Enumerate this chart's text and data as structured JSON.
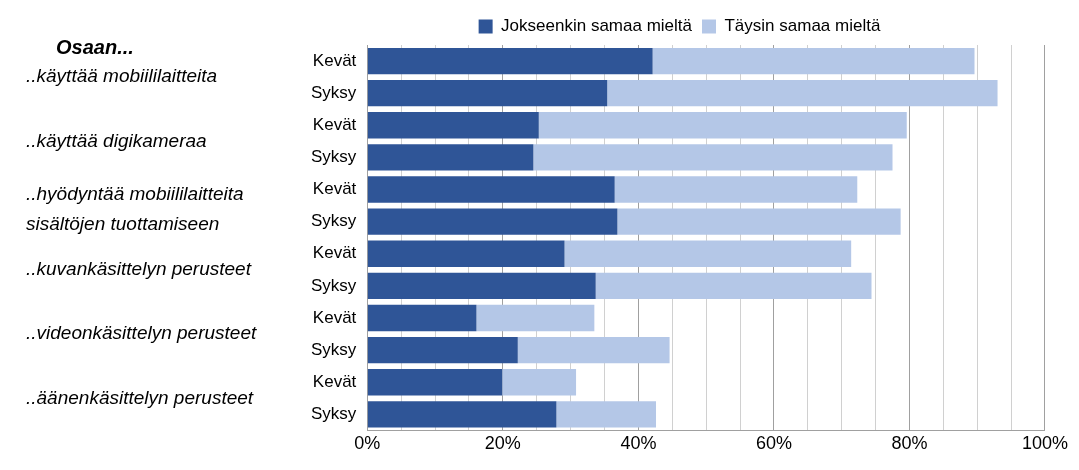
{
  "chart_data": {
    "type": "bar",
    "orientation": "horizontal",
    "stacked": true,
    "title": "Osaan...",
    "categories": [
      "Kevät",
      "Syksy",
      "Kevät",
      "Syksy",
      "Kevät",
      "Syksy",
      "Kevät",
      "Syksy",
      "Kevät",
      "Syksy",
      "Kevät",
      "Syksy"
    ],
    "series": [
      {
        "name": "Jokseenkin samaa mieltä",
        "color": "#2f5597",
        "values": [
          42.1,
          35.4,
          25.3,
          24.5,
          36.5,
          36.9,
          29.1,
          33.7,
          16.1,
          22.2,
          19.9,
          27.9
        ]
      },
      {
        "name": "Täysin samaa mieltä",
        "color": "#b4c7e7",
        "values": [
          47.5,
          57.6,
          54.3,
          53.0,
          35.8,
          41.8,
          42.3,
          40.7,
          17.4,
          22.4,
          10.9,
          14.7
        ]
      }
    ],
    "annotations": [
      "..käyttää mobiililaitteita",
      "..käyttää digikameraa",
      "..hyödyntää mobiililaitteita\nsisältöjen tuottamiseen",
      "..kuvankäsittelyn perusteet",
      "..videonkäsittelyn perusteet",
      "..äänenkäsittelyn perusteet"
    ],
    "xlim": [
      0,
      100
    ],
    "xticks": [
      {
        "value": 0,
        "label": "0%"
      },
      {
        "value": 5,
        "label": null
      },
      {
        "value": 10,
        "label": null
      },
      {
        "value": 15,
        "label": null
      },
      {
        "value": 20,
        "label": "20%"
      },
      {
        "value": 25,
        "label": null
      },
      {
        "value": 30,
        "label": null
      },
      {
        "value": 35,
        "label": null
      },
      {
        "value": 40,
        "label": "40%"
      },
      {
        "value": 45,
        "label": null
      },
      {
        "value": 50,
        "label": null
      },
      {
        "value": 55,
        "label": null
      },
      {
        "value": 60,
        "label": "60%"
      },
      {
        "value": 65,
        "label": null
      },
      {
        "value": 70,
        "label": null
      },
      {
        "value": 75,
        "label": null
      },
      {
        "value": 80,
        "label": "80%"
      },
      {
        "value": 85,
        "label": null
      },
      {
        "value": 90,
        "label": null
      },
      {
        "value": 95,
        "label": null
      },
      {
        "value": 100,
        "label": "100%"
      }
    ],
    "grid": true,
    "legend": "top"
  }
}
